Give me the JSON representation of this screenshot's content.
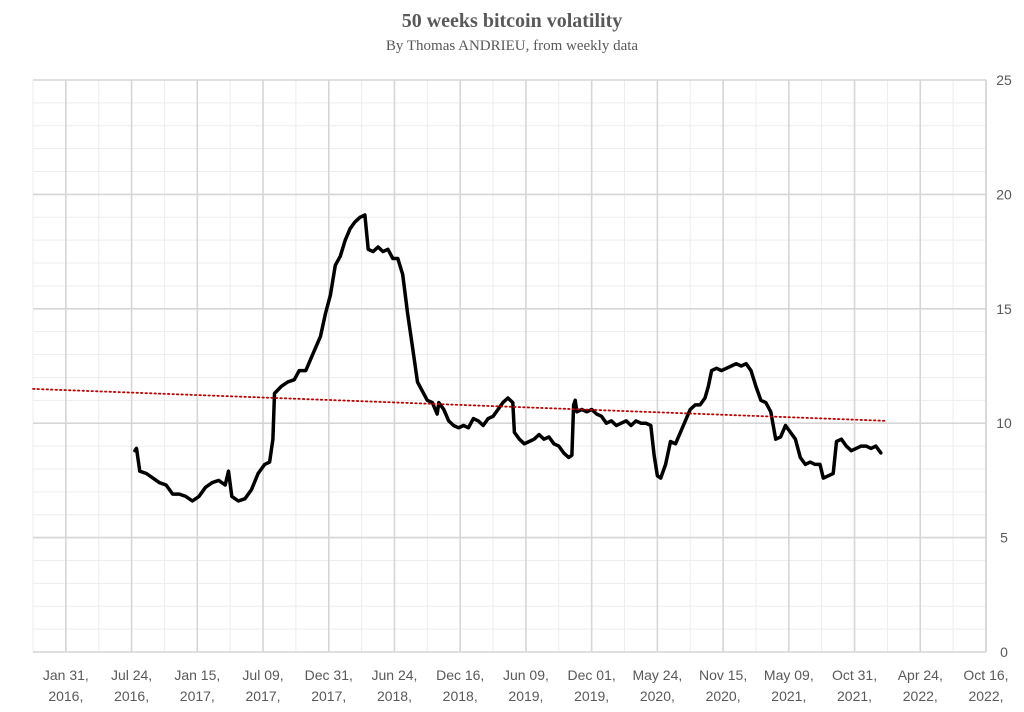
{
  "title": "50 weeks bitcoin volatility",
  "subtitle": "By Thomas ANDRIEU, from weekly data",
  "chart_data": {
    "type": "line",
    "title": "50 weeks bitcoin volatility",
    "subtitle": "By Thomas ANDRIEU, from weekly data",
    "xlabel": "",
    "ylabel": "",
    "ylim": [
      0,
      25
    ],
    "yticks": [
      "0",
      "5",
      "10",
      "15",
      "20",
      "25"
    ],
    "y_axis_side": "right",
    "grid": true,
    "legend": "none",
    "x_tick_labels": [
      [
        "Jan 31,",
        "2016,"
      ],
      [
        "Jul 24,",
        "2016,"
      ],
      [
        "Jan 15,",
        "2017,"
      ],
      [
        "Jul 09,",
        "2017,"
      ],
      [
        "Dec 31,",
        "2017,"
      ],
      [
        "Jun 24,",
        "2018,"
      ],
      [
        "Dec 16,",
        "2018,"
      ],
      [
        "Jun 09,",
        "2019,"
      ],
      [
        "Dec 01,",
        "2019,"
      ],
      [
        "May 24,",
        "2020,"
      ],
      [
        "Nov 15,",
        "2020,"
      ],
      [
        "May 09,",
        "2021,"
      ],
      [
        "Oct 31,",
        "2021,"
      ],
      [
        "Apr 24,",
        "2022,"
      ],
      [
        "Oct 16,",
        "2022,"
      ]
    ],
    "series": [
      {
        "color": "#000000",
        "style": "solid",
        "points": [
          [
            3.1,
            8.8
          ],
          [
            3.15,
            8.9
          ],
          [
            3.25,
            7.9
          ],
          [
            3.45,
            7.8
          ],
          [
            3.65,
            7.6
          ],
          [
            3.85,
            7.4
          ],
          [
            4.05,
            7.3
          ],
          [
            4.25,
            6.9
          ],
          [
            4.45,
            6.9
          ],
          [
            4.65,
            6.8
          ],
          [
            4.85,
            6.6
          ],
          [
            5.05,
            6.8
          ],
          [
            5.25,
            7.2
          ],
          [
            5.45,
            7.4
          ],
          [
            5.65,
            7.5
          ],
          [
            5.85,
            7.3
          ],
          [
            5.95,
            7.9
          ],
          [
            6.05,
            6.8
          ],
          [
            6.25,
            6.6
          ],
          [
            6.45,
            6.7
          ],
          [
            6.65,
            7.1
          ],
          [
            6.85,
            7.8
          ],
          [
            7.05,
            8.2
          ],
          [
            7.2,
            8.3
          ],
          [
            7.3,
            9.3
          ],
          [
            7.35,
            11.3
          ],
          [
            7.55,
            11.6
          ],
          [
            7.75,
            11.8
          ],
          [
            7.95,
            11.9
          ],
          [
            8.1,
            12.3
          ],
          [
            8.3,
            12.3
          ],
          [
            8.45,
            12.8
          ],
          [
            8.6,
            13.3
          ],
          [
            8.75,
            13.8
          ],
          [
            8.9,
            14.8
          ],
          [
            9.05,
            15.6
          ],
          [
            9.2,
            16.9
          ],
          [
            9.35,
            17.3
          ],
          [
            9.5,
            18.0
          ],
          [
            9.65,
            18.5
          ],
          [
            9.8,
            18.8
          ],
          [
            9.95,
            19.0
          ],
          [
            10.1,
            19.1
          ],
          [
            10.2,
            17.6
          ],
          [
            10.35,
            17.5
          ],
          [
            10.5,
            17.7
          ],
          [
            10.65,
            17.5
          ],
          [
            10.8,
            17.6
          ],
          [
            10.95,
            17.2
          ],
          [
            11.1,
            17.2
          ],
          [
            11.25,
            16.5
          ],
          [
            11.4,
            14.8
          ],
          [
            11.55,
            13.3
          ],
          [
            11.7,
            11.8
          ],
          [
            11.85,
            11.4
          ],
          [
            12.0,
            11.0
          ],
          [
            12.15,
            10.9
          ],
          [
            12.3,
            10.4
          ],
          [
            12.35,
            10.9
          ],
          [
            12.5,
            10.6
          ],
          [
            12.65,
            10.1
          ],
          [
            12.8,
            9.9
          ],
          [
            12.95,
            9.8
          ],
          [
            13.1,
            9.9
          ],
          [
            13.25,
            9.8
          ],
          [
            13.4,
            10.2
          ],
          [
            13.55,
            10.1
          ],
          [
            13.7,
            9.9
          ],
          [
            13.85,
            10.2
          ],
          [
            14.0,
            10.3
          ],
          [
            14.15,
            10.6
          ],
          [
            14.3,
            10.9
          ],
          [
            14.45,
            11.1
          ],
          [
            14.6,
            10.9
          ],
          [
            14.65,
            9.6
          ],
          [
            14.8,
            9.3
          ],
          [
            14.95,
            9.1
          ],
          [
            15.1,
            9.2
          ],
          [
            15.25,
            9.3
          ],
          [
            15.4,
            9.5
          ],
          [
            15.55,
            9.3
          ],
          [
            15.7,
            9.4
          ],
          [
            15.85,
            9.1
          ],
          [
            16.0,
            9.0
          ],
          [
            16.15,
            8.7
          ],
          [
            16.3,
            8.5
          ],
          [
            16.4,
            8.6
          ],
          [
            16.45,
            10.8
          ],
          [
            16.5,
            11.0
          ],
          [
            16.55,
            10.5
          ],
          [
            16.7,
            10.6
          ],
          [
            16.85,
            10.5
          ],
          [
            17.0,
            10.6
          ],
          [
            17.15,
            10.4
          ],
          [
            17.3,
            10.3
          ],
          [
            17.45,
            10.0
          ],
          [
            17.6,
            10.1
          ],
          [
            17.75,
            9.9
          ],
          [
            17.9,
            10.0
          ],
          [
            18.05,
            10.1
          ],
          [
            18.2,
            9.9
          ],
          [
            18.35,
            10.1
          ],
          [
            18.5,
            10.0
          ],
          [
            18.65,
            10.0
          ],
          [
            18.8,
            9.9
          ],
          [
            18.9,
            8.6
          ],
          [
            19.0,
            7.7
          ],
          [
            19.1,
            7.6
          ],
          [
            19.25,
            8.2
          ],
          [
            19.4,
            9.2
          ],
          [
            19.55,
            9.1
          ],
          [
            19.7,
            9.6
          ],
          [
            19.85,
            10.1
          ],
          [
            20.0,
            10.6
          ],
          [
            20.15,
            10.8
          ],
          [
            20.3,
            10.8
          ],
          [
            20.45,
            11.1
          ],
          [
            20.55,
            11.6
          ],
          [
            20.65,
            12.3
          ],
          [
            20.8,
            12.4
          ],
          [
            20.95,
            12.3
          ],
          [
            21.1,
            12.4
          ],
          [
            21.25,
            12.5
          ],
          [
            21.4,
            12.6
          ],
          [
            21.55,
            12.5
          ],
          [
            21.7,
            12.6
          ],
          [
            21.85,
            12.3
          ],
          [
            22.0,
            11.6
          ],
          [
            22.15,
            11.0
          ],
          [
            22.3,
            10.9
          ],
          [
            22.45,
            10.5
          ],
          [
            22.6,
            9.3
          ],
          [
            22.75,
            9.4
          ],
          [
            22.9,
            9.9
          ],
          [
            23.05,
            9.6
          ],
          [
            23.2,
            9.3
          ],
          [
            23.35,
            8.5
          ],
          [
            23.5,
            8.2
          ],
          [
            23.65,
            8.3
          ],
          [
            23.8,
            8.2
          ],
          [
            23.95,
            8.2
          ],
          [
            24.05,
            7.6
          ],
          [
            24.2,
            7.7
          ],
          [
            24.35,
            7.8
          ],
          [
            24.45,
            9.2
          ],
          [
            24.6,
            9.3
          ],
          [
            24.75,
            9.0
          ],
          [
            24.9,
            8.8
          ],
          [
            25.05,
            8.9
          ],
          [
            25.2,
            9.0
          ],
          [
            25.35,
            9.0
          ],
          [
            25.5,
            8.9
          ],
          [
            25.65,
            9.0
          ],
          [
            25.8,
            8.7
          ]
        ]
      },
      {
        "color": "#c00000",
        "style": "dotted",
        "points": [
          [
            0,
            11.5
          ],
          [
            26,
            10.1
          ]
        ]
      }
    ]
  }
}
